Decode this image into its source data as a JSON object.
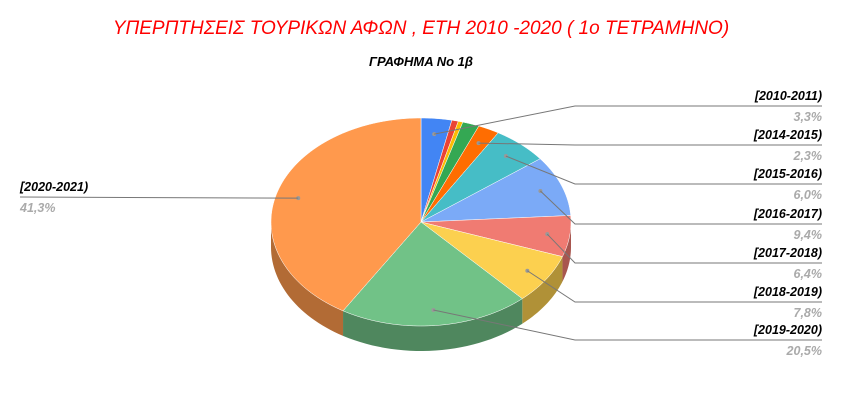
{
  "chart_data": {
    "type": "pie",
    "title": "ΥΠΕΡΠΤΗΣΕΙΣ ΤΟΥΡΙΚΩΝ ΑΦΩΝ  , ΕΤΗ  2010 -2020 ( 1ο ΤΕΤΡΑΜΗΝΟ)",
    "subtitle": "ΓΡΑΦΗΜΑ  Νο 1β",
    "three_d": true,
    "slices": [
      {
        "label": "[2010-2011)",
        "value": 3.3,
        "value_label": "3,3%",
        "color": "#4285f4",
        "side": "right"
      },
      {
        "label": "",
        "value": 0.7,
        "value_label": "",
        "color": "#ea4335"
      },
      {
        "label": "",
        "value": 0.5,
        "value_label": "",
        "color": "#fbbc04"
      },
      {
        "label": "",
        "value": 1.8,
        "value_label": "",
        "color": "#34a853"
      },
      {
        "label": "[2014-2015)",
        "value": 2.3,
        "value_label": "2,3%",
        "color": "#ff6d01",
        "side": "right"
      },
      {
        "label": "[2015-2016)",
        "value": 6.0,
        "value_label": "6,0%",
        "color": "#46bdc6",
        "side": "right"
      },
      {
        "label": "[2016-2017)",
        "value": 9.4,
        "value_label": "9,4%",
        "color": "#7baaf7",
        "side": "right"
      },
      {
        "label": "[2017-2018)",
        "value": 6.4,
        "value_label": "6,4%",
        "color": "#f07b72",
        "side": "right"
      },
      {
        "label": "[2018-2019)",
        "value": 7.8,
        "value_label": "7,8%",
        "color": "#fcd04f",
        "side": "right"
      },
      {
        "label": "[2019-2020)",
        "value": 20.5,
        "value_label": "20,5%",
        "color": "#71c287",
        "side": "right"
      },
      {
        "label": "[2020-2021)",
        "value": 41.3,
        "value_label": "41,3%",
        "color": "#ff994d",
        "side": "left"
      }
    ]
  }
}
